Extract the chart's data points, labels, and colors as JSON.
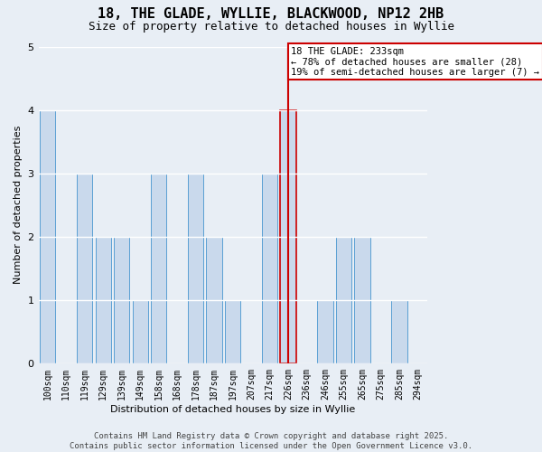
{
  "title": "18, THE GLADE, WYLLIE, BLACKWOOD, NP12 2HB",
  "subtitle": "Size of property relative to detached houses in Wyllie",
  "xlabel": "Distribution of detached houses by size in Wyllie",
  "ylabel": "Number of detached properties",
  "categories": [
    "100sqm",
    "110sqm",
    "119sqm",
    "129sqm",
    "139sqm",
    "149sqm",
    "158sqm",
    "168sqm",
    "178sqm",
    "187sqm",
    "197sqm",
    "207sqm",
    "217sqm",
    "226sqm",
    "236sqm",
    "246sqm",
    "255sqm",
    "265sqm",
    "275sqm",
    "285sqm",
    "294sqm"
  ],
  "values": [
    4,
    0,
    3,
    2,
    2,
    1,
    3,
    0,
    3,
    2,
    1,
    0,
    3,
    4,
    0,
    1,
    2,
    2,
    0,
    1,
    0
  ],
  "highlight_index": 13,
  "bar_color": "#c9d9ec",
  "bar_edge_color": "#5a9fd4",
  "highlight_bar_edge_color": "#cc0000",
  "highlight_line_color": "#cc0000",
  "background_color": "#e8eef5",
  "grid_color": "#ffffff",
  "ylim": [
    0,
    5
  ],
  "yticks": [
    0,
    1,
    2,
    3,
    4,
    5
  ],
  "annotation_title": "18 THE GLADE: 233sqm",
  "annotation_line1": "← 78% of detached houses are smaller (28)",
  "annotation_line2": "19% of semi-detached houses are larger (7) →",
  "footer_line1": "Contains HM Land Registry data © Crown copyright and database right 2025.",
  "footer_line2": "Contains public sector information licensed under the Open Government Licence v3.0.",
  "title_fontsize": 11,
  "subtitle_fontsize": 9,
  "axis_label_fontsize": 8,
  "tick_fontsize": 7,
  "annotation_fontsize": 7.5,
  "footer_fontsize": 6.5
}
